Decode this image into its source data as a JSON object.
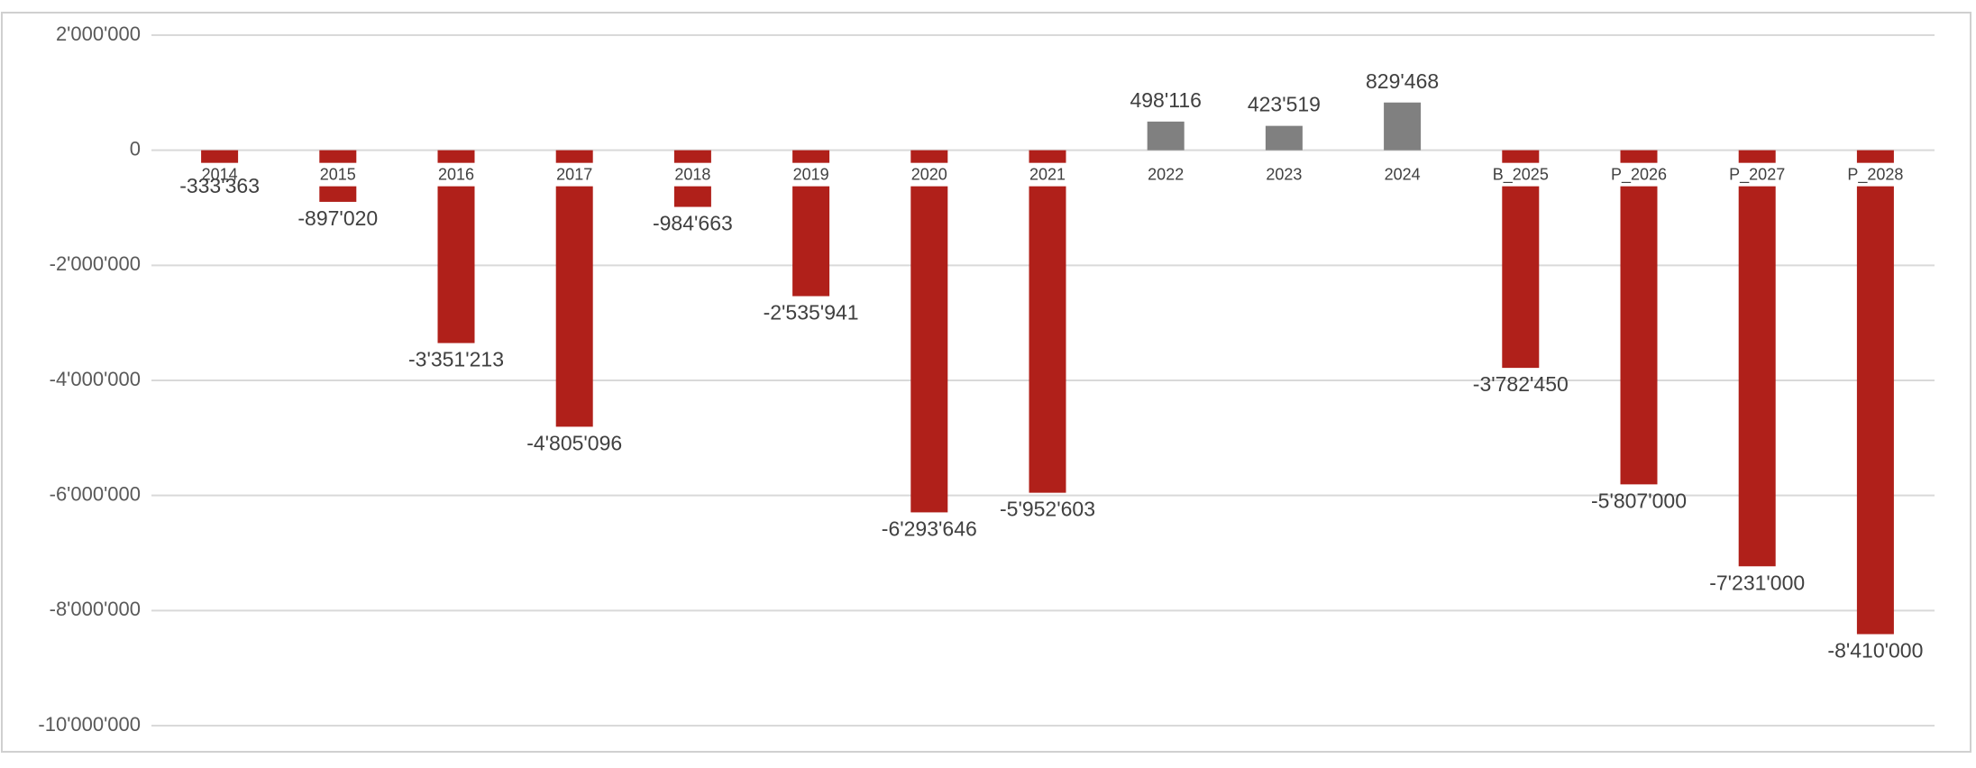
{
  "chart_data": {
    "type": "bar",
    "categories": [
      "2014",
      "2015",
      "2016",
      "2017",
      "2018",
      "2019",
      "2020",
      "2021",
      "2022",
      "2023",
      "2024",
      "B_2025",
      "P_2026",
      "P_2027",
      "P_2028"
    ],
    "values": [
      -333363,
      -897020,
      -3351213,
      -4805096,
      -984663,
      -2535941,
      -6293646,
      -5952603,
      498116,
      423519,
      829468,
      -3782450,
      -5807000,
      -7231000,
      -8410000
    ],
    "value_labels": [
      "-333'363",
      "-897'020",
      "-3'351'213",
      "-4'805'096",
      "-984'663",
      "-2'535'941",
      "-6'293'646",
      "-5'952'603",
      "498'116",
      "423'519",
      "829'468",
      "-3'782'450",
      "-5'807'000",
      "-7'231'000",
      "-8'410'000"
    ],
    "colors": [
      "#b0201a",
      "#b0201a",
      "#b0201a",
      "#b0201a",
      "#b0201a",
      "#b0201a",
      "#b0201a",
      "#b0201a",
      "#808080",
      "#808080",
      "#808080",
      "#b0201a",
      "#b0201a",
      "#b0201a",
      "#b0201a"
    ],
    "ylim": [
      -10000000,
      2000000
    ],
    "yticks": [
      {
        "value": -10000000,
        "label": "-10'000'000"
      },
      {
        "value": -8000000,
        "label": "-8'000'000"
      },
      {
        "value": -6000000,
        "label": "-6'000'000"
      },
      {
        "value": -4000000,
        "label": "-4'000'000"
      },
      {
        "value": -2000000,
        "label": "-2'000'000"
      },
      0,
      {
        "value": 2000000,
        "label": "2'000'000"
      }
    ],
    "grid": true
  }
}
